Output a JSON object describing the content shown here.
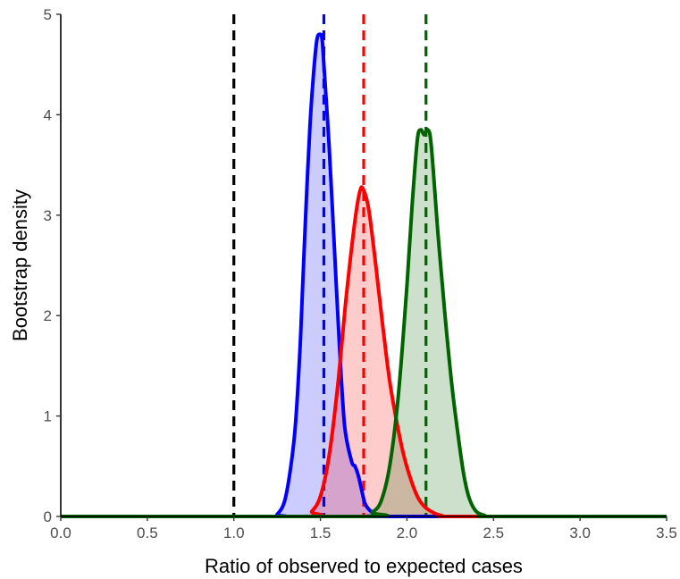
{
  "chart_data": {
    "type": "area",
    "title": "",
    "xlabel": "Ratio of observed to expected cases",
    "ylabel": "Bootstrap density",
    "xlim": [
      0,
      3.5
    ],
    "ylim": [
      0,
      5
    ],
    "x_ticks": [
      "0.0",
      "0.5",
      "1.0",
      "1.5",
      "2.0",
      "2.5",
      "3.0",
      "3.5"
    ],
    "y_ticks": [
      "0",
      "1",
      "2",
      "3",
      "4",
      "5"
    ],
    "grid": false,
    "legend": "none",
    "reference_lines": [
      {
        "x": 1.0,
        "color": "#000000",
        "style": "dashed"
      },
      {
        "x": 1.52,
        "color": "#0000ff",
        "style": "dashed"
      },
      {
        "x": 1.75,
        "color": "#ff0000",
        "style": "dashed"
      },
      {
        "x": 2.11,
        "color": "#006400",
        "style": "dashed"
      }
    ],
    "series": [
      {
        "color": "#0000ff",
        "fill": "#0000ff",
        "x": [
          0.0,
          1.2,
          1.25,
          1.3,
          1.35,
          1.38,
          1.4,
          1.42,
          1.44,
          1.46,
          1.48,
          1.5,
          1.51,
          1.52,
          1.55,
          1.58,
          1.61,
          1.64,
          1.68,
          1.7,
          1.72,
          1.74,
          1.76,
          1.8,
          1.85,
          1.9,
          3.5
        ],
        "y": [
          0.0,
          0.0,
          0.02,
          0.2,
          0.8,
          1.6,
          2.4,
          3.2,
          3.9,
          4.4,
          4.75,
          4.8,
          4.75,
          4.5,
          3.7,
          2.7,
          1.7,
          0.9,
          0.55,
          0.5,
          0.4,
          0.25,
          0.12,
          0.04,
          0.01,
          0.0,
          0.0
        ]
      },
      {
        "color": "#ff0000",
        "fill": "#ff0000",
        "x": [
          0.0,
          1.4,
          1.45,
          1.5,
          1.55,
          1.6,
          1.65,
          1.7,
          1.73,
          1.75,
          1.78,
          1.82,
          1.86,
          1.9,
          1.94,
          1.98,
          2.02,
          2.06,
          2.1,
          2.15,
          2.2,
          2.3,
          3.5
        ],
        "y": [
          0.0,
          0.0,
          0.05,
          0.2,
          0.6,
          1.3,
          2.2,
          2.95,
          3.25,
          3.25,
          3.05,
          2.5,
          1.9,
          1.35,
          0.95,
          0.62,
          0.38,
          0.2,
          0.1,
          0.04,
          0.01,
          0.0,
          0.0
        ]
      },
      {
        "color": "#006400",
        "fill": "#006400",
        "x": [
          0.0,
          1.75,
          1.8,
          1.85,
          1.9,
          1.95,
          2.0,
          2.03,
          2.06,
          2.08,
          2.1,
          2.12,
          2.14,
          2.18,
          2.22,
          2.26,
          2.3,
          2.33,
          2.36,
          2.4,
          2.45,
          2.5,
          3.5
        ],
        "y": [
          0.0,
          0.0,
          0.04,
          0.15,
          0.5,
          1.2,
          2.3,
          3.1,
          3.75,
          3.85,
          3.8,
          3.85,
          3.7,
          2.8,
          2.0,
          1.3,
          0.75,
          0.4,
          0.18,
          0.05,
          0.01,
          0.0,
          0.0
        ]
      }
    ]
  }
}
